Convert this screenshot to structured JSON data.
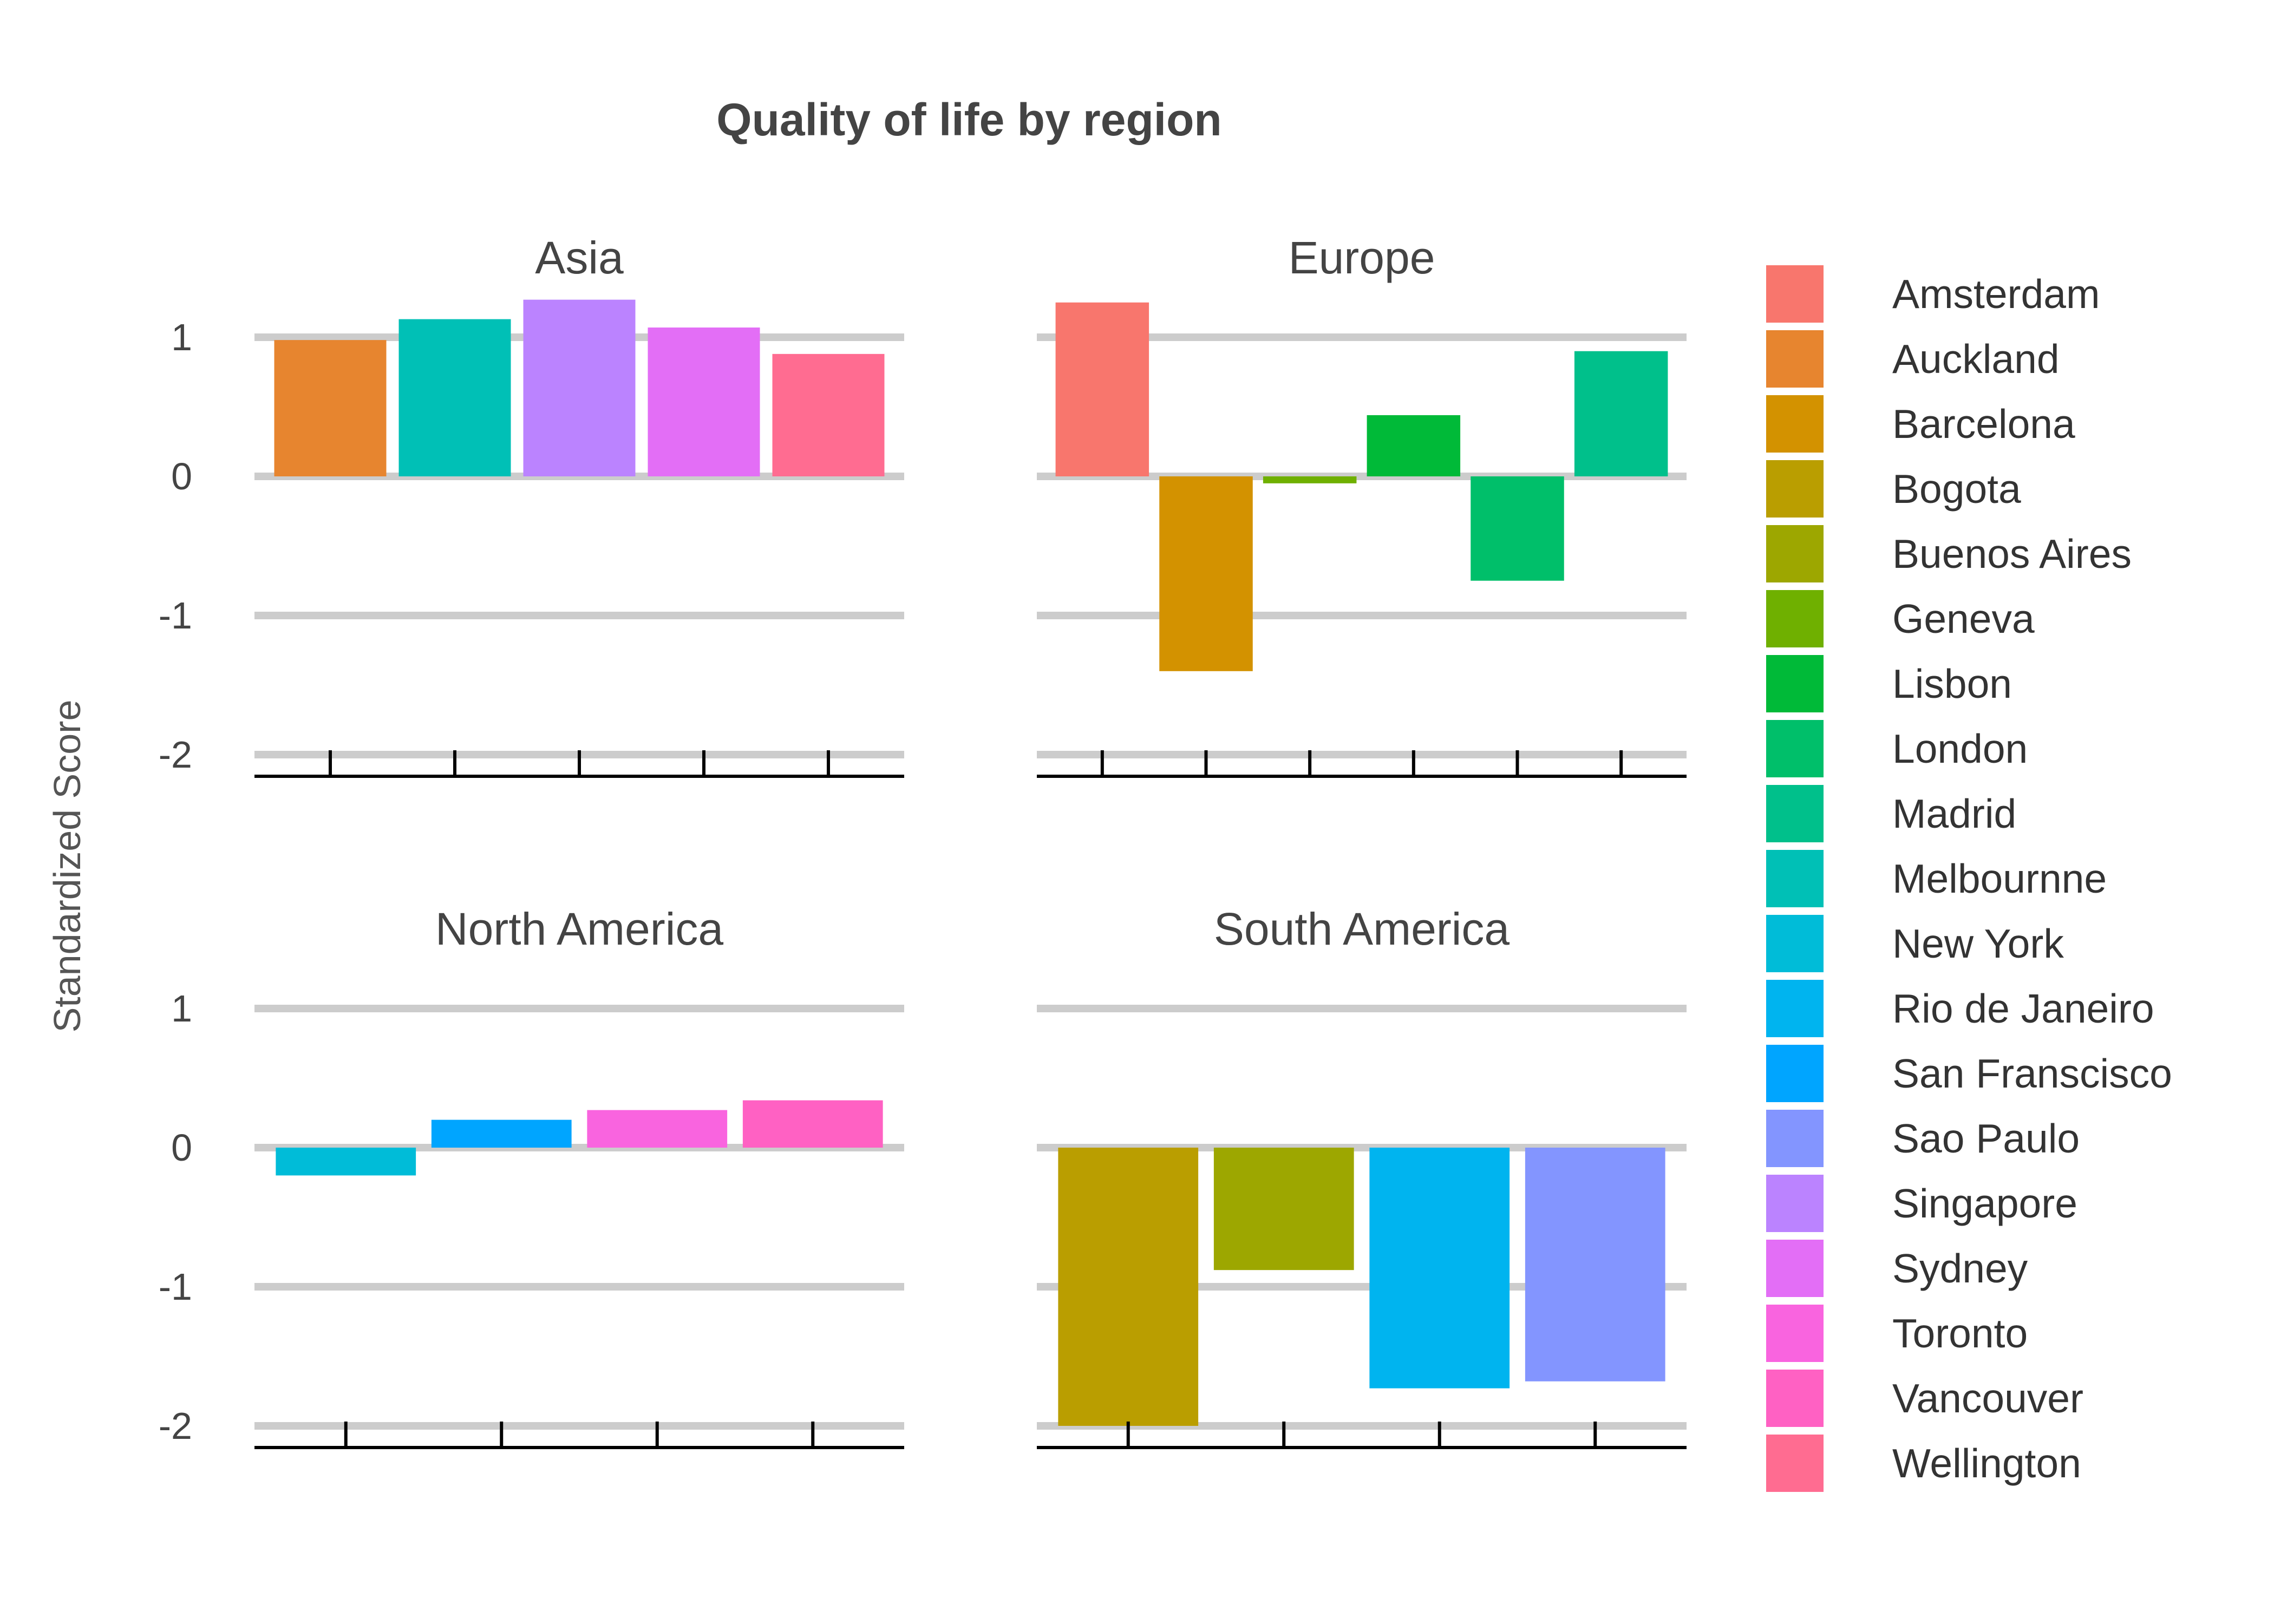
{
  "chart_data": {
    "type": "bar",
    "title": "Quality of life by region",
    "ylabel": "Standardized Score",
    "xlabel": "",
    "ylim": [
      -2,
      1.4
    ],
    "y_ticks": [
      1,
      0,
      -1,
      -2
    ],
    "grid": true,
    "legend_position": "right",
    "facets": [
      {
        "name": "Asia",
        "bars": [
          {
            "city": "Auckland",
            "value": 0.98
          },
          {
            "city": "Melbournne",
            "value": 1.13
          },
          {
            "city": "Singapore",
            "value": 1.27
          },
          {
            "city": "Sydney",
            "value": 1.07
          },
          {
            "city": "Wellington",
            "value": 0.88
          }
        ]
      },
      {
        "name": "Europe",
        "bars": [
          {
            "city": "Amsterdam",
            "value": 1.25
          },
          {
            "city": "Barcelona",
            "value": -1.4
          },
          {
            "city": "Geneva",
            "value": -0.05
          },
          {
            "city": "Lisbon",
            "value": 0.44
          },
          {
            "city": "London",
            "value": -0.75
          },
          {
            "city": "Madrid",
            "value": 0.9
          }
        ]
      },
      {
        "name": "North America",
        "bars": [
          {
            "city": "New York",
            "value": -0.2
          },
          {
            "city": "San Franscisco",
            "value": 0.2
          },
          {
            "city": "Toronto",
            "value": 0.27
          },
          {
            "city": "Vancouver",
            "value": 0.34
          }
        ]
      },
      {
        "name": "South America",
        "bars": [
          {
            "city": "Bogota",
            "value": -2.0
          },
          {
            "city": "Buenos Aires",
            "value": -0.88
          },
          {
            "city": "Rio de Janeiro",
            "value": -1.73
          },
          {
            "city": "Sao Paulo",
            "value": -1.68
          }
        ]
      }
    ],
    "legend": [
      {
        "name": "Amsterdam",
        "color": "#F8766D"
      },
      {
        "name": "Auckland",
        "color": "#E7852F"
      },
      {
        "name": "Barcelona",
        "color": "#D39200"
      },
      {
        "name": "Bogota",
        "color": "#BA9E00"
      },
      {
        "name": "Buenos Aires",
        "color": "#9DA700"
      },
      {
        "name": "Geneva",
        "color": "#6FB000"
      },
      {
        "name": "Lisbon",
        "color": "#00BA38"
      },
      {
        "name": "London",
        "color": "#00BF6A"
      },
      {
        "name": "Madrid",
        "color": "#00C08B"
      },
      {
        "name": "Melbournne",
        "color": "#00C0B6"
      },
      {
        "name": "New York",
        "color": "#00BCD8"
      },
      {
        "name": "Rio de Janeiro",
        "color": "#00B4EF"
      },
      {
        "name": "San Franscisco",
        "color": "#00A5FF"
      },
      {
        "name": "Sao Paulo",
        "color": "#8395FF"
      },
      {
        "name": "Singapore",
        "color": "#BB83FF"
      },
      {
        "name": "Sydney",
        "color": "#E36EF6"
      },
      {
        "name": "Toronto",
        "color": "#F964DF"
      },
      {
        "name": "Vancouver",
        "color": "#FF61C3"
      },
      {
        "name": "Wellington",
        "color": "#FF6C91"
      }
    ]
  }
}
